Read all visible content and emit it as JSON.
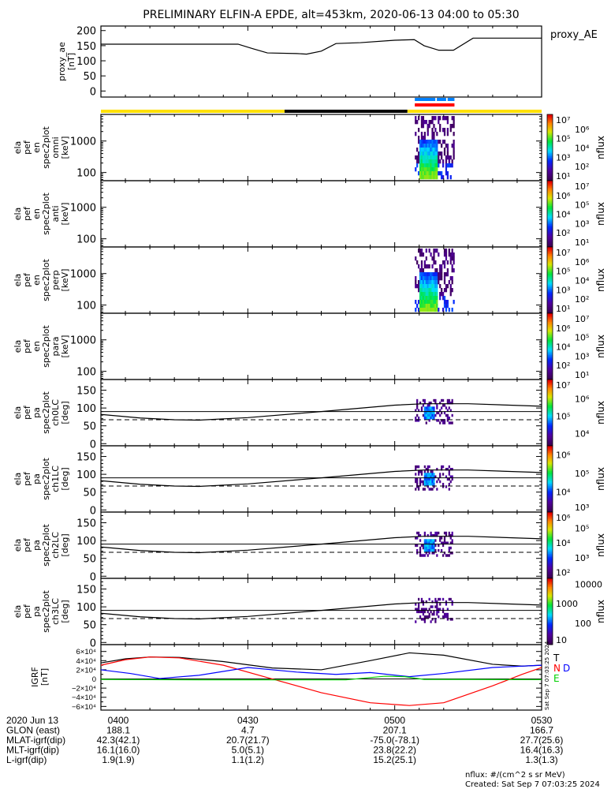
{
  "chart_data": {
    "type": "spectrogram-stack",
    "title": "PRELIMINARY ELFIN-A EPDE, alt=453km, 2020-06-13 04:00 to 05:30",
    "time_range_minutes": [
      0,
      90
    ],
    "time_ticks": [
      "0400",
      "0430",
      "0500",
      "0530"
    ],
    "proxy_ae": {
      "legend": "proxy_AE",
      "ylabel": [
        "proxy_ae",
        "[nT]"
      ],
      "ylim": [
        -20,
        215
      ],
      "yticks": [
        "0",
        "50",
        "100",
        "150",
        "200"
      ],
      "ytick_values": [
        0,
        50,
        100,
        150,
        200
      ],
      "t": [
        0,
        28,
        31,
        34,
        40,
        42,
        45,
        48,
        53,
        60,
        64,
        66,
        69,
        72,
        76,
        90
      ],
      "values": [
        155,
        155,
        140,
        126,
        124,
        122,
        132,
        157,
        160,
        168,
        170,
        150,
        135,
        135,
        175,
        175
      ]
    },
    "indicator_bars": {
      "blue": {
        "color": "#0080ff",
        "t": [
          [
            64.1,
            68.3
          ],
          [
            68.6,
            70.5
          ],
          [
            70.8,
            72.2
          ]
        ]
      },
      "red": {
        "color": "#ff0000",
        "t": [
          [
            64.1,
            72.2
          ]
        ]
      },
      "orbit": [
        {
          "color": "#ffe000",
          "t": [
            0,
            37.5
          ]
        },
        {
          "color": "#000000",
          "t": [
            37.5,
            62.6
          ]
        },
        {
          "color": "#ffe000",
          "t": [
            62.6,
            90
          ]
        }
      ]
    },
    "spectra_panels": [
      {
        "label": [
          "ela",
          "pef",
          "en",
          "spec2plot",
          "omni",
          "[keV]"
        ],
        "kind": "energy",
        "active": true,
        "colorbar": {
          "label": "nflux",
          "ticks": [
            "10¹",
            "10²",
            "10³",
            "10⁴",
            "10⁵",
            "10⁶",
            "10⁷"
          ],
          "log_range": [
            1,
            7
          ]
        }
      },
      {
        "label": [
          "ela",
          "pef",
          "en",
          "spec2plot",
          "anti",
          "[keV]"
        ],
        "kind": "energy",
        "active": false,
        "colorbar": {
          "label": "nflux",
          "ticks": [
            "10¹",
            "10²",
            "10³",
            "10⁴",
            "10⁵",
            "10⁶",
            "10⁷"
          ],
          "log_range": [
            1,
            7
          ]
        }
      },
      {
        "label": [
          "ela",
          "pef",
          "en",
          "spec2plot",
          "perp",
          "[keV]"
        ],
        "kind": "energy",
        "active": true,
        "colorbar": {
          "label": "nflux",
          "ticks": [
            "10¹",
            "10²",
            "10³",
            "10⁴",
            "10⁵",
            "10⁶",
            "10⁷"
          ],
          "log_range": [
            1,
            7
          ]
        }
      },
      {
        "label": [
          "ela",
          "pef",
          "en",
          "spec2plot",
          "para",
          "[keV]"
        ],
        "kind": "energy",
        "active": false,
        "colorbar": {
          "label": "nflux",
          "ticks": [
            "10¹",
            "10²",
            "10³",
            "10⁴",
            "10⁵",
            "10⁶",
            "10⁷"
          ],
          "log_range": [
            1,
            7
          ]
        }
      },
      {
        "label": [
          "ela",
          "pef",
          "pa",
          "spec2plot",
          "ch0LC",
          "[deg]"
        ],
        "kind": "pa",
        "active": true,
        "colorbar": {
          "label": "nflux",
          "ticks": [
            "10⁴",
            "10⁵",
            "10⁶",
            "10⁷"
          ],
          "log_range": [
            3.3,
            7.1
          ]
        }
      },
      {
        "label": [
          "ela",
          "pef",
          "pa",
          "spec2plot",
          "ch1LC",
          "[deg]"
        ],
        "kind": "pa",
        "active": true,
        "colorbar": {
          "label": "nflux",
          "ticks": [
            "10³",
            "10⁴",
            "10⁵",
            "10⁶"
          ],
          "log_range": [
            2.9,
            6.5
          ]
        }
      },
      {
        "label": [
          "ela",
          "pef",
          "pa",
          "spec2plot",
          "ch2LC",
          "[deg]"
        ],
        "kind": "pa",
        "active": true,
        "colorbar": {
          "label": "nflux",
          "ticks": [
            "10²",
            "10³",
            "10⁴",
            "10⁵",
            "10⁶"
          ],
          "log_range": [
            1.6,
            6.1
          ]
        }
      },
      {
        "label": [
          "ela",
          "pef",
          "pa",
          "spec2plot",
          "ch3LC",
          "[deg]"
        ],
        "kind": "pa",
        "active": true,
        "colorbar": {
          "label": "nflux",
          "ticks": [
            "10",
            "100",
            "1000",
            "10000"
          ],
          "log_range": [
            0.9,
            4.3
          ]
        }
      }
    ],
    "energy_axis": {
      "yticks": [
        "100",
        "1000"
      ],
      "ytick_values": [
        100,
        1000
      ],
      "ylim": [
        55,
        7000
      ]
    },
    "pa_axis": {
      "yticks": [
        "0",
        "50",
        "100",
        "150"
      ],
      "ytick_values": [
        0,
        50,
        100,
        150
      ],
      "ylim": [
        -6,
        180
      ],
      "solid_line": 90,
      "dashed_line": 67
    },
    "pa_curve": {
      "t": [
        0,
        8,
        15,
        20,
        30,
        45,
        60,
        66,
        75,
        90
      ],
      "values": [
        82,
        72,
        67,
        66,
        73,
        90,
        108,
        112,
        112,
        105
      ]
    },
    "spectra_active_time": [
      64.1,
      72.2
    ],
    "igrf": {
      "ylabel": [
        "IGRF",
        "[nT]"
      ],
      "ylim": [
        -68000,
        75000
      ],
      "yticks": [
        "−6×10⁴",
        "−4×10⁴",
        "−2×10⁴",
        "0",
        "2×10⁴",
        "4×10⁴",
        "6×10⁴"
      ],
      "ytick_values": [
        -60000,
        -40000,
        -20000,
        0,
        20000,
        40000,
        60000
      ],
      "legend": [
        {
          "name": "T",
          "color": "#000000"
        },
        {
          "name": "N",
          "color": "#ff0000"
        },
        {
          "name": "E",
          "color": "#00d000"
        }
      ],
      "series": [
        {
          "name": "T",
          "color": "#000000",
          "t": [
            0,
            5,
            10,
            16,
            25,
            35,
            45,
            55,
            63,
            70,
            80,
            86,
            90
          ],
          "values": [
            35000,
            44000,
            48000,
            47000,
            38000,
            24000,
            20000,
            40000,
            57000,
            52000,
            32000,
            28000,
            30000
          ]
        },
        {
          "name": "N",
          "color": "#ff0000",
          "t": [
            0,
            5,
            10,
            16,
            25,
            35,
            45,
            55,
            63,
            70,
            80,
            86,
            90
          ],
          "values": [
            30000,
            42000,
            48000,
            46000,
            30000,
            0,
            -30000,
            -52000,
            -58000,
            -52000,
            -15000,
            10000,
            25000
          ]
        },
        {
          "name": "D",
          "color": "#0000ff",
          "t": [
            0,
            6,
            12,
            20,
            30,
            40,
            48,
            55,
            63,
            70,
            80,
            90
          ],
          "values": [
            20000,
            12000,
            1000,
            8000,
            25000,
            15000,
            10000,
            14000,
            5000,
            12000,
            25000,
            30000
          ]
        },
        {
          "name": "E",
          "color": "#00d000",
          "t": [
            0,
            20,
            50,
            58,
            62,
            66,
            75,
            90
          ],
          "values": [
            -1000,
            -2000,
            -2000,
            6000,
            5000,
            -1000,
            -1000,
            -1500
          ]
        }
      ]
    },
    "ephemeris": {
      "rows": [
        {
          "label": "2020 Jun 13",
          "values": [
            "0400",
            "0430",
            "0500",
            "0530"
          ]
        },
        {
          "label": "GLON (east)",
          "values": [
            "188.1",
            "4.7",
            "207.1",
            "166.7"
          ]
        },
        {
          "label": "MLAT-igrf(dip)",
          "values": [
            "42.3(42.1)",
            "20.7(21.7)",
            "-75.0(-78.1)",
            "27.7(25.6)"
          ]
        },
        {
          "label": "MLT-igrf(dip)",
          "values": [
            "16.1(16.0)",
            "5.0(5.1)",
            "23.8(22.2)",
            "16.4(16.3)"
          ]
        },
        {
          "label": "L-igrf(dip)",
          "values": [
            "1.9(1.9)",
            "1.1(1.2)",
            "15.2(25.1)",
            "1.3(1.3)"
          ]
        }
      ]
    },
    "footer": {
      "units": "nflux: #/(cm^2 s sr MeV)",
      "created": "Created: Sat Sep  7 07:03:25 2024",
      "side_stamp": "Sat Sep  7 07:03:25 2024"
    }
  }
}
